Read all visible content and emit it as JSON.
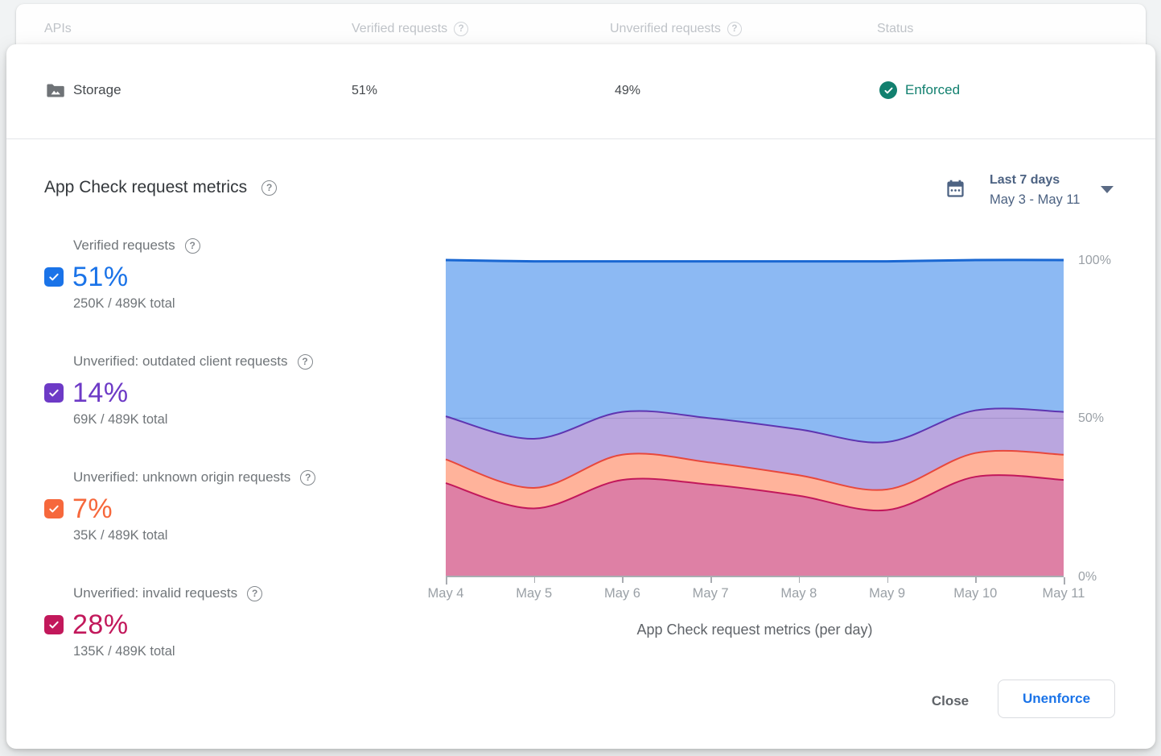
{
  "icons": {
    "help": "?"
  },
  "table_header": {
    "apis": "APIs",
    "verified": "Verified requests",
    "unverified": "Unverified requests",
    "status": "Status"
  },
  "storage_row": {
    "name": "Storage",
    "verified_pct": "51%",
    "unverified_pct": "49%",
    "status": "Enforced",
    "status_color": "#12806F"
  },
  "panel": {
    "title": "App Check request metrics",
    "date_range": {
      "label": "Last 7 days",
      "range": "May 3 - May 11"
    },
    "legend": {
      "items": [
        {
          "label": "Verified requests",
          "pct": "51%",
          "total": "250K / 489K total",
          "color": "#1A73E8"
        },
        {
          "label": "Unverified: outdated client requests",
          "pct": "14%",
          "total": "69K / 489K total",
          "color": "#6D3AC6"
        },
        {
          "label": "Unverified: unknown origin requests",
          "pct": "7%",
          "total": "35K / 489K total",
          "color": "#F6683C"
        },
        {
          "label": "Unverified: invalid requests",
          "pct": "28%",
          "total": "135K / 489K total",
          "color": "#C2185B"
        }
      ]
    },
    "footer": {
      "close": "Close",
      "unenforce": "Unenforce"
    }
  },
  "chart_data": {
    "type": "area",
    "stacked": true,
    "unit": "percent",
    "title": "App Check request metrics (per day)",
    "x": [
      "May 4",
      "May 5",
      "May 6",
      "May 7",
      "May 8",
      "May 9",
      "May 10",
      "May 11"
    ],
    "y_ticks": [
      "100%",
      "50%",
      "0%"
    ],
    "ylim": [
      0,
      100
    ],
    "gridline_at": 50,
    "legend_position": "left",
    "series_bottom_to_top": [
      {
        "name": "Unverified: invalid requests",
        "line": "#C2185B",
        "fill": "rgba(194,24,91,0.55)",
        "values": [
          29.5,
          21.5,
          30.5,
          29,
          25.5,
          21,
          31.5,
          30.5
        ]
      },
      {
        "name": "Unverified: unknown origin requests",
        "line": "#E8483C",
        "fill": "rgba(255,87,34,0.45)",
        "values": [
          7.5,
          6.5,
          8,
          7,
          6.5,
          6.5,
          7.5,
          8
        ]
      },
      {
        "name": "Unverified: outdated client requests",
        "line": "#5E35B1",
        "fill": "rgba(103,58,183,0.45)",
        "values": [
          13.6,
          15.5,
          13.5,
          14,
          14.5,
          15,
          13.5,
          13.5
        ]
      },
      {
        "name": "Verified requests",
        "line": "#1967D2",
        "fill": "rgba(26,115,232,0.5)",
        "values": [
          49.4,
          56.1,
          47.6,
          49.6,
          53.1,
          57.1,
          47.5,
          48
        ]
      }
    ]
  }
}
